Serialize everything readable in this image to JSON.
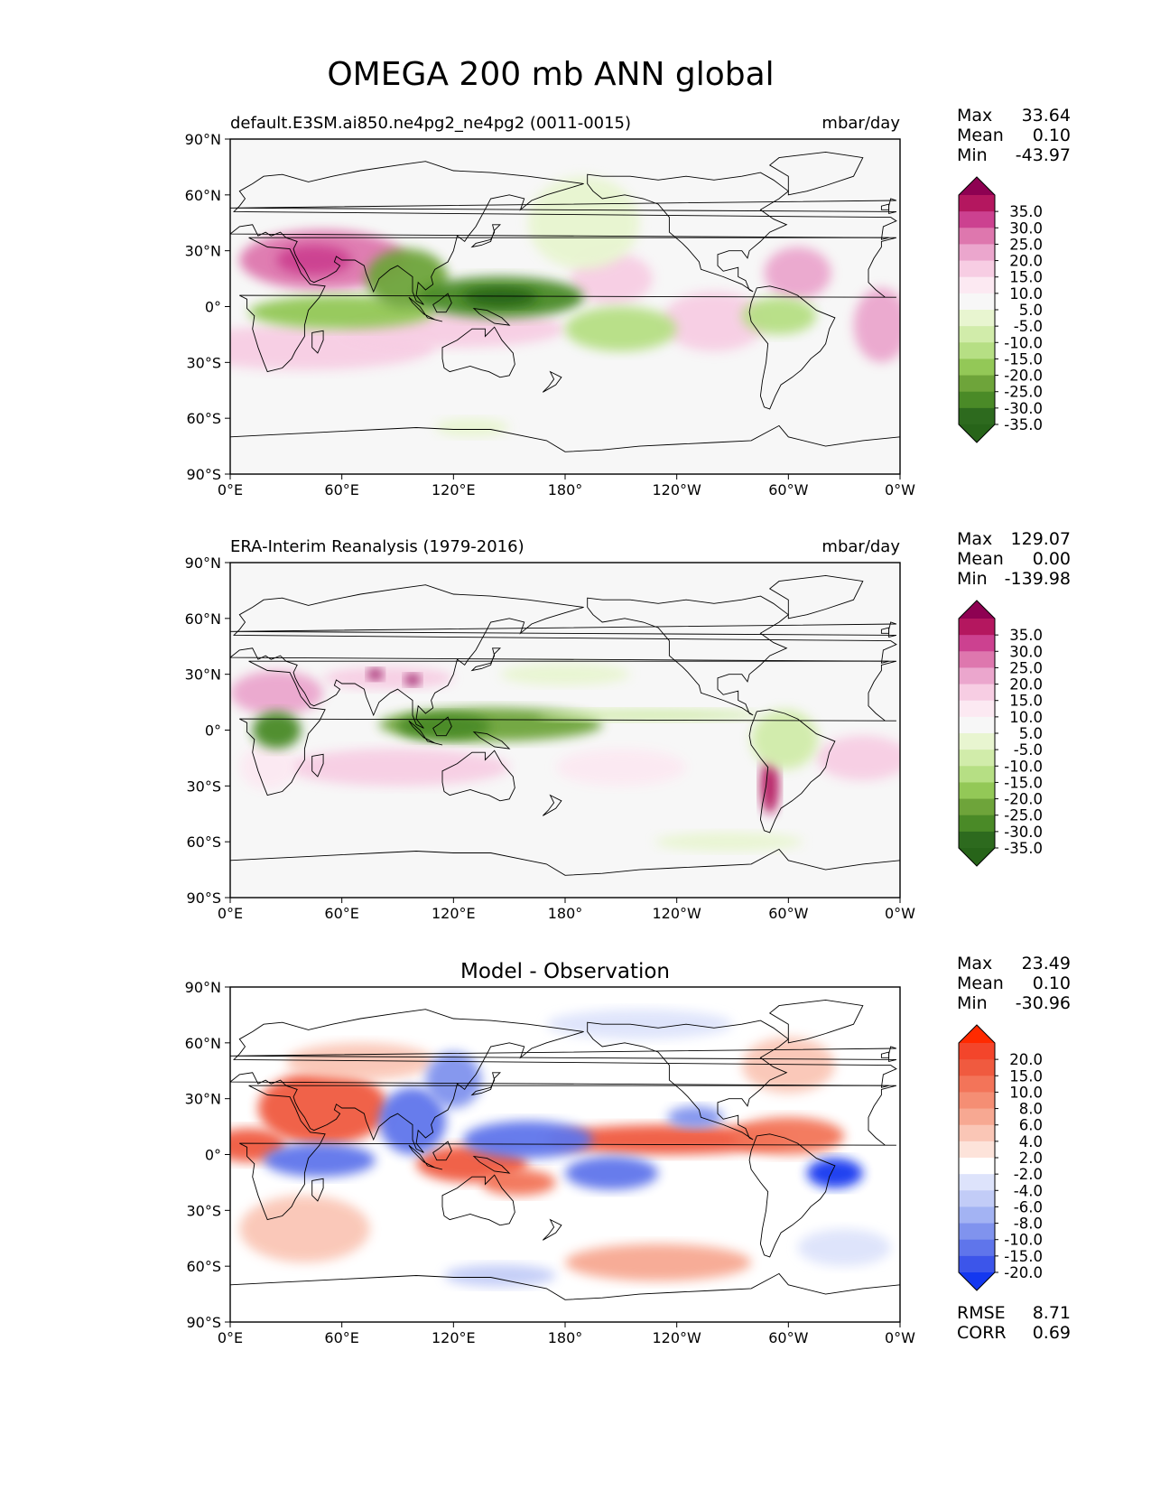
{
  "figure": {
    "title": "OMEGA 200 mb ANN global"
  },
  "chart_data": [
    {
      "type": "heatmap",
      "id": "model",
      "title": "default.E3SM.ai850.ne4pg2_ne4pg2 (0011-0015)",
      "units": "mbar/day",
      "xlabel": "",
      "ylabel": "",
      "xlim": [
        0,
        360
      ],
      "ylim": [
        -90,
        90
      ],
      "x_ticks": [
        "0°E",
        "60°E",
        "120°E",
        "180°",
        "120°W",
        "60°W",
        "0°W"
      ],
      "y_ticks": [
        "90°N",
        "60°N",
        "30°N",
        "0°",
        "30°S",
        "60°S",
        "90°S"
      ],
      "stats": [
        {
          "label": "Max",
          "value": "33.64"
        },
        {
          "label": "Mean",
          "value": "0.10"
        },
        {
          "label": "Min",
          "value": "-43.97"
        }
      ],
      "colorbar": {
        "labels": [
          "35.0",
          "30.0",
          "25.0",
          "20.0",
          "15.0",
          "10.0",
          "5.0",
          "-5.0",
          "-10.0",
          "-15.0",
          "-20.0",
          "-25.0",
          "-30.0",
          "-35.0"
        ],
        "colors": [
          "#8e0152",
          "#b4175f",
          "#cc4190",
          "#de77ae",
          "#eba6cd",
          "#f7cde3",
          "#fce9f2",
          "#f7f7f7",
          "#e8f5d0",
          "#d1ecaa",
          "#b6df84",
          "#93c857",
          "#6ea43a",
          "#4a8a27",
          "#2d6a1e",
          "#276419"
        ]
      },
      "blobs": [
        {
          "lon": 50,
          "lat": 25,
          "rx": 45,
          "ry": 16,
          "value": 25
        },
        {
          "lon": 45,
          "lat": 25,
          "rx": 20,
          "ry": 8,
          "value": 30
        },
        {
          "lon": 40,
          "lat": -22,
          "rx": 70,
          "ry": 12,
          "value": 12
        },
        {
          "lon": 120,
          "lat": -12,
          "rx": 60,
          "ry": 10,
          "value": 15
        },
        {
          "lon": 205,
          "lat": 15,
          "rx": 22,
          "ry": 14,
          "value": 12
        },
        {
          "lon": 260,
          "lat": -8,
          "rx": 28,
          "ry": 16,
          "value": 12
        },
        {
          "lon": 305,
          "lat": 18,
          "rx": 18,
          "ry": 14,
          "value": 20
        },
        {
          "lon": 350,
          "lat": -10,
          "rx": 15,
          "ry": 20,
          "value": 18
        },
        {
          "lon": 60,
          "lat": -3,
          "rx": 50,
          "ry": 9,
          "value": -20
        },
        {
          "lon": 95,
          "lat": 15,
          "rx": 22,
          "ry": 16,
          "value": -25
        },
        {
          "lon": 145,
          "lat": 5,
          "rx": 45,
          "ry": 11,
          "value": -30
        },
        {
          "lon": 145,
          "lat": 5,
          "rx": 20,
          "ry": 5,
          "value": -38
        },
        {
          "lon": 210,
          "lat": -12,
          "rx": 30,
          "ry": 12,
          "value": -18
        },
        {
          "lon": 190,
          "lat": 45,
          "rx": 30,
          "ry": 25,
          "value": -8
        },
        {
          "lon": 295,
          "lat": -5,
          "rx": 20,
          "ry": 10,
          "value": -18
        },
        {
          "lon": 130,
          "lat": -65,
          "rx": 20,
          "ry": 5,
          "value": -8
        }
      ]
    },
    {
      "type": "heatmap",
      "id": "observation",
      "title": "ERA-Interim Reanalysis (1979-2016)",
      "units": "mbar/day",
      "xlabel": "",
      "ylabel": "",
      "xlim": [
        0,
        360
      ],
      "ylim": [
        -90,
        90
      ],
      "x_ticks": [
        "0°E",
        "60°E",
        "120°E",
        "180°",
        "120°W",
        "60°W",
        "0°W"
      ],
      "y_ticks": [
        "90°N",
        "60°N",
        "30°N",
        "0°",
        "30°S",
        "60°S",
        "90°S"
      ],
      "stats": [
        {
          "label": "Max",
          "value": "129.07"
        },
        {
          "label": "Mean",
          "value": "0.00"
        },
        {
          "label": "Min",
          "value": "-139.98"
        }
      ],
      "colorbar": {
        "labels": [
          "35.0",
          "30.0",
          "25.0",
          "20.0",
          "15.0",
          "10.0",
          "5.0",
          "-5.0",
          "-10.0",
          "-15.0",
          "-20.0",
          "-25.0",
          "-30.0",
          "-35.0"
        ],
        "colors": [
          "#8e0152",
          "#b4175f",
          "#cc4190",
          "#de77ae",
          "#eba6cd",
          "#f7cde3",
          "#fce9f2",
          "#f7f7f7",
          "#e8f5d0",
          "#d1ecaa",
          "#b6df84",
          "#93c857",
          "#6ea43a",
          "#4a8a27",
          "#2d6a1e",
          "#276419"
        ]
      },
      "blobs": [
        {
          "lon": 25,
          "lat": 20,
          "rx": 25,
          "ry": 12,
          "value": 20
        },
        {
          "lon": 85,
          "lat": 28,
          "rx": 35,
          "ry": 6,
          "value": 12
        },
        {
          "lon": 78,
          "lat": 30,
          "rx": 4,
          "ry": 3,
          "value": 40
        },
        {
          "lon": 98,
          "lat": 27,
          "rx": 4,
          "ry": 3,
          "value": 40
        },
        {
          "lon": 90,
          "lat": -20,
          "rx": 60,
          "ry": 10,
          "value": 12
        },
        {
          "lon": 210,
          "lat": -20,
          "rx": 35,
          "ry": 10,
          "value": 10
        },
        {
          "lon": 340,
          "lat": -15,
          "rx": 25,
          "ry": 12,
          "value": 12
        },
        {
          "lon": 20,
          "lat": -20,
          "rx": 15,
          "ry": 12,
          "value": 10
        },
        {
          "lon": 290,
          "lat": -30,
          "rx": 5,
          "ry": 15,
          "value": 35
        },
        {
          "lon": 25,
          "lat": 0,
          "rx": 13,
          "ry": 10,
          "value": -30
        },
        {
          "lon": 140,
          "lat": 3,
          "rx": 60,
          "ry": 9,
          "value": -25
        },
        {
          "lon": 115,
          "lat": 2,
          "rx": 25,
          "ry": 7,
          "value": -32
        },
        {
          "lon": 225,
          "lat": 8,
          "rx": 60,
          "ry": 3,
          "value": -12
        },
        {
          "lon": 298,
          "lat": -5,
          "rx": 18,
          "ry": 16,
          "value": -12
        },
        {
          "lon": 268,
          "lat": -60,
          "rx": 40,
          "ry": 5,
          "value": -8
        },
        {
          "lon": 180,
          "lat": 30,
          "rx": 35,
          "ry": 6,
          "value": -8
        }
      ]
    },
    {
      "type": "heatmap",
      "id": "difference",
      "title": "Model - Observation",
      "units": "",
      "xlabel": "",
      "ylabel": "",
      "xlim": [
        0,
        360
      ],
      "ylim": [
        -90,
        90
      ],
      "x_ticks": [
        "0°E",
        "60°E",
        "120°E",
        "180°",
        "120°W",
        "60°W",
        "0°W"
      ],
      "y_ticks": [
        "90°N",
        "60°N",
        "30°N",
        "0°",
        "30°S",
        "60°S",
        "90°S"
      ],
      "stats": [
        {
          "label": "Max",
          "value": "23.49"
        },
        {
          "label": "Mean",
          "value": "0.10"
        },
        {
          "label": "Min",
          "value": "-30.96"
        }
      ],
      "metrics": [
        {
          "label": "RMSE",
          "value": "8.71"
        },
        {
          "label": "CORR",
          "value": "0.69"
        }
      ],
      "colorbar": {
        "labels": [
          "20.0",
          "15.0",
          "10.0",
          "8.0",
          "6.0",
          "4.0",
          "2.0",
          "-2.0",
          "-4.0",
          "-6.0",
          "-8.0",
          "-10.0",
          "-15.0",
          "-20.0"
        ],
        "colors": [
          "#ff2a00",
          "#f3452b",
          "#f05a3f",
          "#f37459",
          "#f58e74",
          "#f7a892",
          "#fac6b6",
          "#fde3da",
          "#ffffff",
          "#dde3fb",
          "#c2ccf7",
          "#a3b3f3",
          "#8093ee",
          "#5f75eb",
          "#3c55ea",
          "#1438f0"
        ]
      },
      "blobs": [
        {
          "lon": 50,
          "lat": 25,
          "rx": 35,
          "ry": 20,
          "value": 12
        },
        {
          "lon": 10,
          "lat": 5,
          "rx": 20,
          "ry": 9,
          "value": 15
        },
        {
          "lon": 130,
          "lat": -5,
          "rx": 30,
          "ry": 10,
          "value": 12
        },
        {
          "lon": 155,
          "lat": -15,
          "rx": 20,
          "ry": 7,
          "value": 10
        },
        {
          "lon": 235,
          "lat": 8,
          "rx": 65,
          "ry": 8,
          "value": 12
        },
        {
          "lon": 300,
          "lat": 10,
          "rx": 30,
          "ry": 10,
          "value": 10
        },
        {
          "lon": 230,
          "lat": -58,
          "rx": 50,
          "ry": 10,
          "value": 6
        },
        {
          "lon": 40,
          "lat": -40,
          "rx": 35,
          "ry": 18,
          "value": 4
        },
        {
          "lon": 300,
          "lat": 48,
          "rx": 25,
          "ry": 15,
          "value": 4
        },
        {
          "lon": 70,
          "lat": 50,
          "rx": 40,
          "ry": 10,
          "value": 4
        },
        {
          "lon": 48,
          "lat": -3,
          "rx": 30,
          "ry": 9,
          "value": -18
        },
        {
          "lon": 98,
          "lat": 18,
          "rx": 18,
          "ry": 18,
          "value": -15
        },
        {
          "lon": 120,
          "lat": 40,
          "rx": 15,
          "ry": 15,
          "value": -12
        },
        {
          "lon": 160,
          "lat": 8,
          "rx": 35,
          "ry": 10,
          "value": -15
        },
        {
          "lon": 205,
          "lat": -10,
          "rx": 25,
          "ry": 9,
          "value": -18
        },
        {
          "lon": 250,
          "lat": 20,
          "rx": 15,
          "ry": 6,
          "value": -10
        },
        {
          "lon": 325,
          "lat": -10,
          "rx": 15,
          "ry": 8,
          "value": -20
        },
        {
          "lon": 145,
          "lat": -65,
          "rx": 30,
          "ry": 6,
          "value": -6
        },
        {
          "lon": 220,
          "lat": 70,
          "rx": 50,
          "ry": 8,
          "value": -4
        },
        {
          "lon": 330,
          "lat": -50,
          "rx": 25,
          "ry": 10,
          "value": -4
        }
      ]
    }
  ]
}
